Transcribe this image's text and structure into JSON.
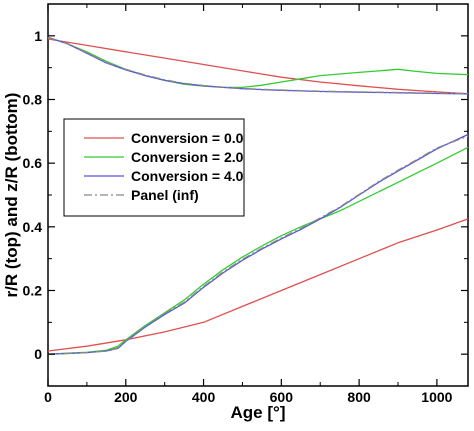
{
  "chart_data": {
    "type": "line",
    "xlabel": "Age [°]",
    "ylabel": "r/R (top) and z/R (bottom)",
    "xlim": [
      0,
      1080
    ],
    "ylim": [
      -0.1,
      1.1
    ],
    "x_ticks": [
      0,
      200,
      400,
      600,
      800,
      1000
    ],
    "y_ticks": [
      0,
      0.2,
      0.4,
      0.6,
      0.8,
      1
    ],
    "x_tick_labels": [
      "0",
      "200",
      "400",
      "600",
      "800",
      "1000"
    ],
    "y_tick_labels": [
      "0",
      "0.2",
      "0.4",
      "0.6",
      "0.8",
      "1"
    ],
    "grid": false,
    "legend_position": "middle-left",
    "series": [
      {
        "name": "Conversion = 0.0",
        "color": "#e05050",
        "dash": "solid",
        "top_x": [
          0,
          100,
          200,
          300,
          400,
          500,
          600,
          700,
          800,
          900,
          1000,
          1080
        ],
        "top_y": [
          0.99,
          0.97,
          0.95,
          0.93,
          0.91,
          0.89,
          0.87,
          0.855,
          0.843,
          0.832,
          0.824,
          0.818
        ],
        "bottom_x": [
          0,
          100,
          200,
          300,
          400,
          500,
          600,
          700,
          800,
          900,
          1000,
          1080
        ],
        "bottom_y": [
          0.01,
          0.025,
          0.045,
          0.07,
          0.1,
          0.15,
          0.2,
          0.25,
          0.3,
          0.35,
          0.39,
          0.425
        ]
      },
      {
        "name": "Conversion = 2.0",
        "color": "#33cc33",
        "dash": "solid",
        "top_x": [
          0,
          50,
          100,
          150,
          200,
          250,
          300,
          350,
          400,
          450,
          500,
          550,
          600,
          650,
          700,
          750,
          800,
          850,
          900,
          950,
          1000,
          1080
        ],
        "top_y": [
          0.995,
          0.975,
          0.95,
          0.92,
          0.895,
          0.875,
          0.86,
          0.848,
          0.842,
          0.838,
          0.838,
          0.845,
          0.855,
          0.865,
          0.875,
          0.88,
          0.885,
          0.89,
          0.895,
          0.888,
          0.882,
          0.878
        ],
        "bottom_x": [
          0,
          50,
          100,
          150,
          180,
          200,
          250,
          300,
          350,
          400,
          450,
          500,
          550,
          600,
          650,
          700,
          750,
          800,
          850,
          900,
          950,
          1000,
          1080
        ],
        "bottom_y": [
          0,
          0.003,
          0.006,
          0.012,
          0.025,
          0.045,
          0.09,
          0.13,
          0.17,
          0.22,
          0.265,
          0.305,
          0.34,
          0.372,
          0.4,
          0.425,
          0.45,
          0.48,
          0.51,
          0.54,
          0.57,
          0.6,
          0.65
        ]
      },
      {
        "name": "Conversion = 4.0",
        "color": "#5555dd",
        "dash": "solid",
        "top_x": [
          0,
          50,
          100,
          150,
          200,
          250,
          300,
          350,
          400,
          450,
          500,
          550,
          600,
          650,
          700,
          750,
          800,
          850,
          900,
          950,
          1000,
          1080
        ],
        "top_y": [
          0.995,
          0.975,
          0.945,
          0.915,
          0.893,
          0.875,
          0.86,
          0.85,
          0.843,
          0.838,
          0.834,
          0.831,
          0.829,
          0.827,
          0.825,
          0.824,
          0.823,
          0.822,
          0.821,
          0.82,
          0.819,
          0.818
        ],
        "bottom_x": [
          0,
          50,
          100,
          150,
          180,
          200,
          250,
          300,
          350,
          400,
          450,
          500,
          550,
          600,
          650,
          700,
          750,
          800,
          850,
          900,
          950,
          1000,
          1080
        ],
        "bottom_y": [
          0,
          0.002,
          0.005,
          0.01,
          0.018,
          0.04,
          0.085,
          0.125,
          0.16,
          0.21,
          0.255,
          0.295,
          0.33,
          0.362,
          0.392,
          0.425,
          0.46,
          0.5,
          0.54,
          0.575,
          0.61,
          0.645,
          0.69
        ]
      },
      {
        "name": "Panel (inf)",
        "color": "#888888",
        "dash": "dashdot",
        "top_x": [
          0,
          50,
          100,
          150,
          200,
          250,
          300,
          350,
          400,
          450,
          500,
          550,
          600,
          650,
          700,
          750,
          800,
          850,
          900,
          950,
          1000,
          1080
        ],
        "top_y": [
          0.995,
          0.976,
          0.947,
          0.917,
          0.895,
          0.877,
          0.862,
          0.851,
          0.844,
          0.839,
          0.835,
          0.832,
          0.83,
          0.828,
          0.826,
          0.825,
          0.824,
          0.823,
          0.822,
          0.821,
          0.82,
          0.819
        ],
        "bottom_x": [
          0,
          50,
          100,
          150,
          180,
          200,
          250,
          300,
          350,
          400,
          450,
          500,
          550,
          600,
          650,
          700,
          750,
          800,
          850,
          900,
          950,
          1000,
          1080
        ],
        "bottom_y": [
          0,
          0.002,
          0.005,
          0.01,
          0.02,
          0.042,
          0.088,
          0.128,
          0.163,
          0.213,
          0.258,
          0.298,
          0.333,
          0.365,
          0.395,
          0.428,
          0.462,
          0.502,
          0.542,
          0.578,
          0.612,
          0.648,
          0.685
        ]
      }
    ]
  }
}
